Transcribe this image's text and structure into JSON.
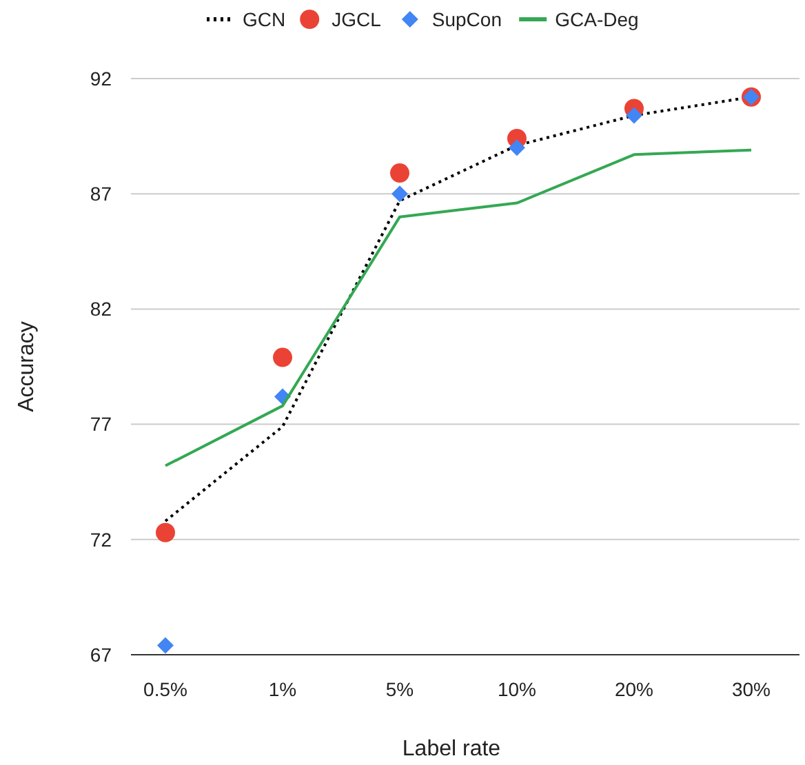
{
  "chart_data": {
    "type": "line",
    "xlabel": "Label rate",
    "ylabel": "Accuracy",
    "categories": [
      "0.5%",
      "1%",
      "5%",
      "10%",
      "20%",
      "30%"
    ],
    "ylim": [
      67,
      92
    ],
    "yticks": [
      67,
      72,
      77,
      82,
      87,
      92
    ],
    "grid": "y",
    "legend": "top",
    "series": [
      {
        "name": "GCN",
        "color": "#000000",
        "line_style": "dotted",
        "marker": "none",
        "values": [
          72.8,
          76.9,
          86.7,
          89.1,
          90.4,
          91.2
        ]
      },
      {
        "name": "JGCL",
        "type": "scatter",
        "color": "#ea4335",
        "marker": "circle",
        "values": [
          72.3,
          79.9,
          87.9,
          89.4,
          90.7,
          91.2
        ]
      },
      {
        "name": "SupCon",
        "type": "scatter",
        "color": "#4285f4",
        "marker": "diamond",
        "values": [
          67.4,
          78.2,
          87.0,
          89.0,
          90.4,
          91.2
        ]
      },
      {
        "name": "GCA-Deg",
        "color": "#34a853",
        "line_style": "solid",
        "marker": "none",
        "values": [
          75.2,
          77.8,
          86.0,
          86.6,
          88.7,
          88.9
        ]
      }
    ]
  }
}
